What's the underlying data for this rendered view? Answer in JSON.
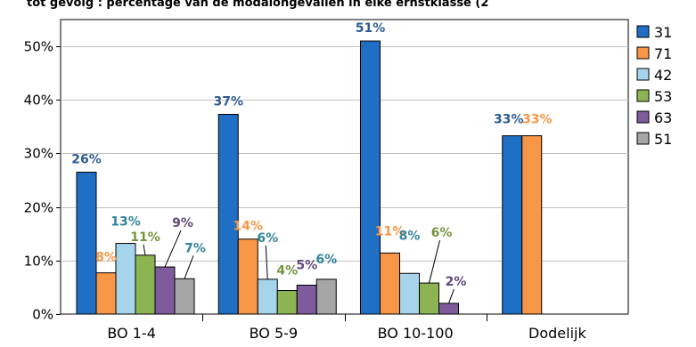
{
  "chart_data": {
    "type": "bar",
    "title": "tot gevolg : percentage van de modalongevallen in elke ernstklasse (2",
    "categories": [
      "BO 1-4",
      "BO 5-9",
      "BO 10-100",
      "Dodelijk"
    ],
    "ylim": [
      0,
      55
    ],
    "yticks": [
      "0%",
      "10%",
      "20%",
      "30%",
      "40%",
      "50%"
    ],
    "ytick_values": [
      0,
      10,
      20,
      30,
      40,
      50
    ],
    "grid": true,
    "legend_position": "right",
    "series": [
      {
        "name": "31",
        "color": "#1f6fc5",
        "label_color": "#2e5c94",
        "values": [
          26.5,
          37.3,
          51.0,
          33.3
        ],
        "labels": [
          "26%",
          "37%",
          "51%",
          "33%"
        ]
      },
      {
        "name": "71",
        "color": "#f79646",
        "label_color": "#f79646",
        "values": [
          7.7,
          14.0,
          11.4,
          33.3
        ],
        "labels": [
          "8%",
          "14%",
          "11%",
          "33%"
        ]
      },
      {
        "name": "42",
        "color": "#a6d4ea",
        "label_color": "#31859c",
        "values": [
          13.2,
          6.5,
          7.6,
          null
        ],
        "labels": [
          "13%",
          "6%",
          "8%",
          ""
        ]
      },
      {
        "name": "53",
        "color": "#8cb452",
        "label_color": "#77933c",
        "values": [
          11.0,
          4.4,
          5.8,
          null
        ],
        "labels": [
          "11%",
          "4%",
          "6%",
          ""
        ]
      },
      {
        "name": "63",
        "color": "#7e5b9b",
        "label_color": "#604a7b",
        "values": [
          8.8,
          5.4,
          2.0,
          null
        ],
        "labels": [
          "9%",
          "5%",
          "2%",
          ""
        ]
      },
      {
        "name": "51",
        "color": "#a6a6a6",
        "label_color": "#31859c",
        "values": [
          6.6,
          6.5,
          null,
          null
        ],
        "labels": [
          "7%",
          "6%",
          "",
          ""
        ]
      }
    ]
  }
}
